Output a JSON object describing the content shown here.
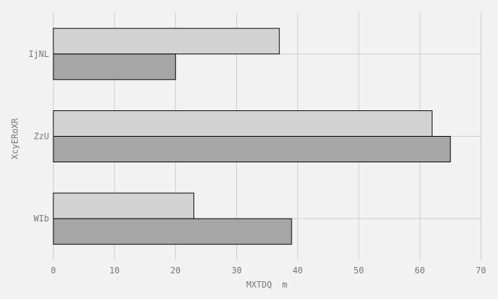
{
  "chart_data": {
    "type": "bar",
    "orientation": "horizontal",
    "categories": [
      "IjNL",
      "ZzU",
      "WIb"
    ],
    "series": [
      {
        "values": [
          37,
          62,
          23
        ],
        "color": "#d3d3d3"
      },
      {
        "values": [
          20,
          65,
          39
        ],
        "color": "#a6a6a6"
      }
    ],
    "xlabel": "MXTDQ  m",
    "ylabel": "XcyERoXR",
    "xlim": [
      0,
      70
    ],
    "xticks": [
      0,
      10,
      20,
      30,
      40,
      50,
      60,
      70
    ],
    "grid": true,
    "legend": "none",
    "background": "#f2f2f2",
    "grid_color": "#cccccc",
    "bar_edge_color": "#000000"
  }
}
